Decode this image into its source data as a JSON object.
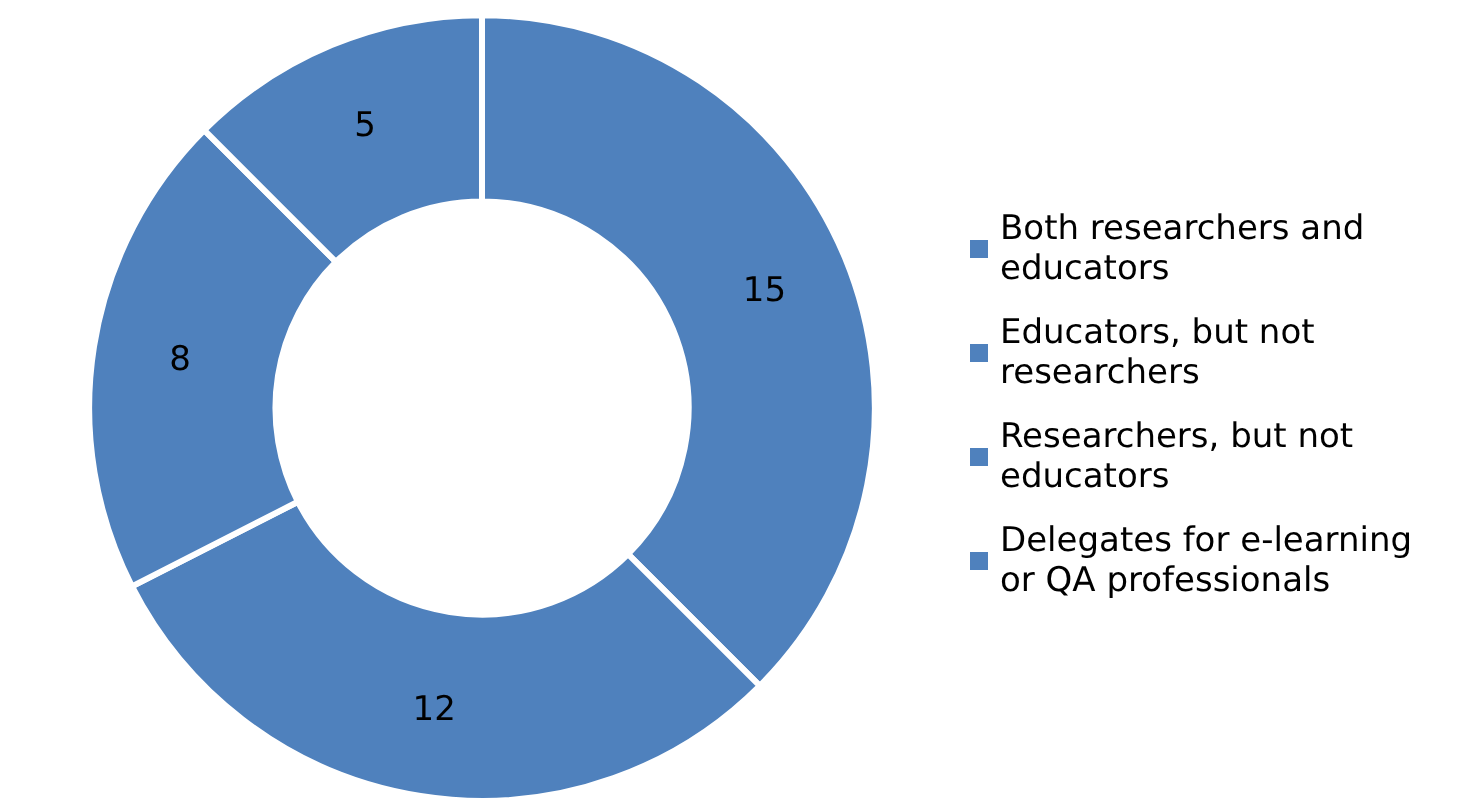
{
  "chart_data": {
    "type": "donut",
    "categories": [
      "Both researchers and educators",
      "Educators, but not researchers",
      "Researchers, but not educators",
      "Delegates for e-learning or QA professionals"
    ],
    "values": [
      15,
      12,
      8,
      5
    ],
    "colors": [
      "#4f81bd",
      "#4f81bd",
      "#4f81bd",
      "#4f81bd"
    ],
    "data_labels": true,
    "legend": "right"
  }
}
